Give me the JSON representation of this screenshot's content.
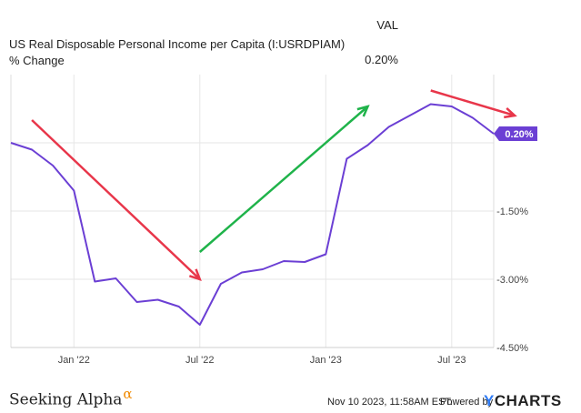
{
  "header": {
    "val_label": "VAL",
    "series_name": "US Real Disposable Personal Income per Capita (I:USRDPIAM) % Change",
    "series_value": "0.20%"
  },
  "chart_data": {
    "type": "line",
    "title": "US Real Disposable Personal Income per Capita (I:USRDPIAM) % Change",
    "xlabel": "",
    "ylabel": "",
    "x": [
      "2021-10",
      "2021-11",
      "2021-12",
      "2022-01",
      "2022-02",
      "2022-03",
      "2022-04",
      "2022-05",
      "2022-06",
      "2022-07",
      "2022-08",
      "2022-09",
      "2022-10",
      "2022-11",
      "2022-12",
      "2023-01",
      "2023-02",
      "2023-03",
      "2023-04",
      "2023-05",
      "2023-06",
      "2023-07",
      "2023-08",
      "2023-09"
    ],
    "series": [
      {
        "name": "US Real Disposable Personal Income per Capita (I:USRDPIAM) % Change",
        "color": "#6b3fd4",
        "values": [
          0.0,
          -0.15,
          -0.5,
          -1.05,
          -3.05,
          -2.98,
          -3.5,
          -3.45,
          -3.6,
          -4.0,
          -3.1,
          -2.85,
          -2.78,
          -2.6,
          -2.62,
          -2.45,
          -0.35,
          -0.05,
          0.35,
          0.6,
          0.85,
          0.8,
          0.55,
          0.2
        ]
      }
    ],
    "x_ticks": [
      "Jan '22",
      "Jul '22",
      "Jan '23",
      "Jul '23"
    ],
    "y_ticks": [
      "-1.50%",
      "-3.00%",
      "-4.50%"
    ],
    "ylim": [
      -4.5,
      1.5
    ],
    "last_value_label": "0.20%",
    "grid": true,
    "annotations": [
      {
        "type": "arrow",
        "color": "#e8364a",
        "from": [
          "2021-11",
          0.5
        ],
        "to": [
          "2022-07",
          -3.0
        ]
      },
      {
        "type": "arrow",
        "color": "#1fb34a",
        "from": [
          "2022-07",
          -2.4
        ],
        "to": [
          "2023-03",
          0.8
        ]
      },
      {
        "type": "arrow",
        "color": "#e8364a",
        "from": [
          "2023-06",
          1.15
        ],
        "to": [
          "2023-10",
          0.6
        ]
      }
    ]
  },
  "footer": {
    "brand": "Seeking Alpha",
    "brand_mark": "α",
    "timestamp": "Nov 10 2023, 11:58AM EST.",
    "powered_by": "Powered by",
    "logo_y": "Y",
    "logo_rest": "CHARTS"
  }
}
